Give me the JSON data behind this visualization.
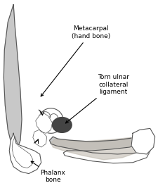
{
  "background_color": "#ffffff",
  "fig_width": 2.25,
  "fig_height": 2.67,
  "dpi": 100,
  "labels": {
    "metacarpal": "Metacarpal\n(hand bone)",
    "torn": "Torn ulnar\ncollateral\nligament",
    "phalanx": "Phalanx\nbone"
  },
  "outline_color": "#555555",
  "fill_light": "#c8c8c8",
  "fill_mid": "#aaaaaa",
  "fill_dark": "#444444",
  "font_size": 6.5
}
